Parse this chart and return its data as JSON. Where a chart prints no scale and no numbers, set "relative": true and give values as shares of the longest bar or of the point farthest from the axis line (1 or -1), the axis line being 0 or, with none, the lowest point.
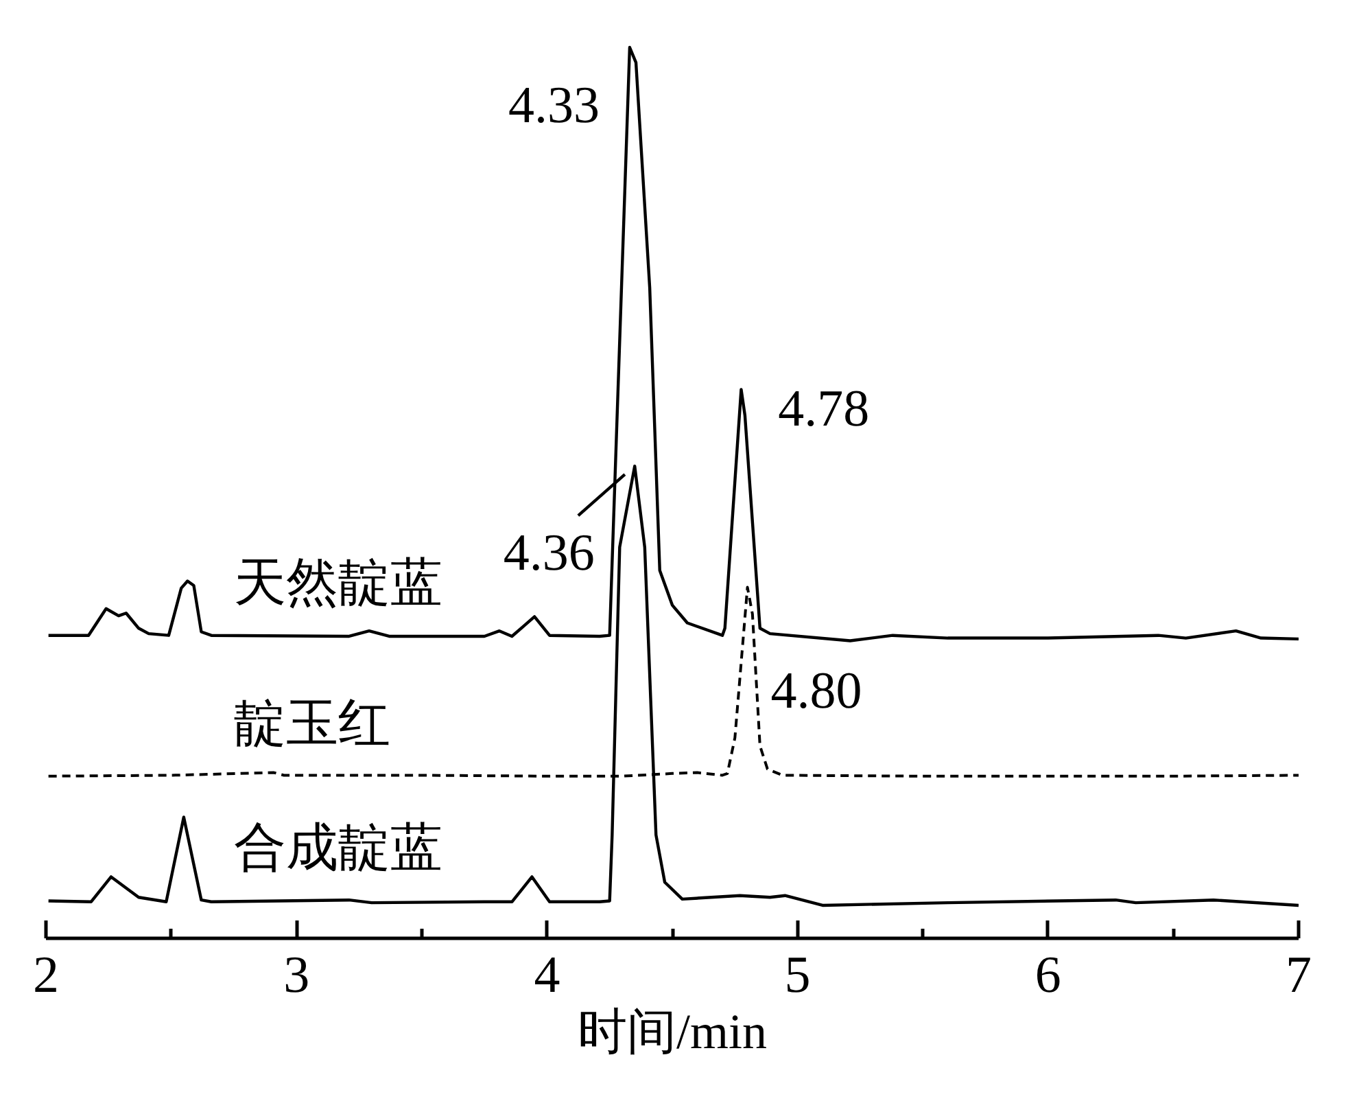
{
  "chart_data": {
    "type": "line",
    "relative": true,
    "xlabel": "时间/min",
    "xlim": [
      2,
      7
    ],
    "xticks": [
      2,
      {
        "value": 2.5,
        "label": null
      },
      3,
      {
        "value": 3.5,
        "label": null
      },
      4,
      {
        "value": 4.5,
        "label": null
      },
      5,
      {
        "value": 5.5,
        "label": null
      },
      6,
      {
        "value": 6.5,
        "label": null
      },
      7
    ],
    "annotations": [
      {
        "text": "4.33",
        "x": 4.33,
        "y": 1.0
      },
      {
        "text": "4.78",
        "x": 4.78,
        "y": 0.616
      },
      {
        "text": "4.36",
        "x": 4.36,
        "y": 0.53
      },
      {
        "text": "4.80",
        "x": 4.8,
        "y": 0.394
      }
    ],
    "series": [
      {
        "name": "天然靛蓝",
        "color": "#000000",
        "line_style": "solid",
        "x": [
          2.01,
          2.17,
          2.24,
          2.29,
          2.32,
          2.37,
          2.41,
          2.49,
          2.54,
          2.565,
          2.59,
          2.62,
          2.66,
          3.21,
          3.29,
          3.37,
          3.75,
          3.81,
          3.86,
          3.95,
          4.01,
          4.21,
          4.25,
          4.33,
          4.355,
          4.41,
          4.45,
          4.5,
          4.56,
          4.7,
          4.71,
          4.775,
          4.79,
          4.85,
          4.89,
          5.21,
          5.38,
          5.6,
          6.0,
          6.44,
          6.55,
          6.75,
          6.85,
          7.0
        ],
        "values": [
          0.34,
          0.34,
          0.37,
          0.362,
          0.365,
          0.348,
          0.342,
          0.34,
          0.393,
          0.401,
          0.396,
          0.344,
          0.34,
          0.339,
          0.345,
          0.339,
          0.339,
          0.345,
          0.339,
          0.361,
          0.34,
          0.339,
          0.34,
          1.0,
          0.983,
          0.73,
          0.413,
          0.374,
          0.354,
          0.34,
          0.348,
          0.616,
          0.587,
          0.348,
          0.342,
          0.334,
          0.34,
          0.337,
          0.337,
          0.34,
          0.337,
          0.345,
          0.337,
          0.336
        ]
      },
      {
        "name": "靛玉红",
        "color": "#000000",
        "line_style": "dashed",
        "x": [
          2.01,
          2.5,
          2.91,
          2.95,
          3.5,
          4.0,
          4.3,
          4.5,
          4.6,
          4.7,
          4.72,
          4.75,
          4.8,
          4.82,
          4.85,
          4.88,
          4.94,
          5.5,
          6.0,
          6.5,
          7.0
        ],
        "values": [
          0.182,
          0.183,
          0.186,
          0.183,
          0.183,
          0.182,
          0.182,
          0.185,
          0.186,
          0.183,
          0.185,
          0.225,
          0.394,
          0.364,
          0.216,
          0.19,
          0.183,
          0.182,
          0.182,
          0.182,
          0.183
        ]
      },
      {
        "name": "合成靛蓝",
        "color": "#000000",
        "line_style": "solid",
        "x": [
          2.01,
          2.18,
          2.26,
          2.37,
          2.48,
          2.55,
          2.62,
          2.66,
          3.21,
          3.3,
          3.75,
          3.86,
          3.94,
          4.01,
          4.21,
          4.25,
          4.26,
          4.29,
          4.35,
          4.39,
          4.435,
          4.47,
          4.54,
          4.77,
          4.89,
          4.95,
          5.1,
          5.6,
          6.27,
          6.35,
          6.66,
          7.0
        ],
        "values": [
          0.042,
          0.041,
          0.069,
          0.046,
          0.041,
          0.136,
          0.043,
          0.041,
          0.043,
          0.04,
          0.041,
          0.041,
          0.069,
          0.041,
          0.041,
          0.042,
          0.116,
          0.439,
          0.53,
          0.439,
          0.116,
          0.063,
          0.044,
          0.048,
          0.046,
          0.048,
          0.037,
          0.04,
          0.043,
          0.04,
          0.043,
          0.037
        ]
      }
    ]
  }
}
